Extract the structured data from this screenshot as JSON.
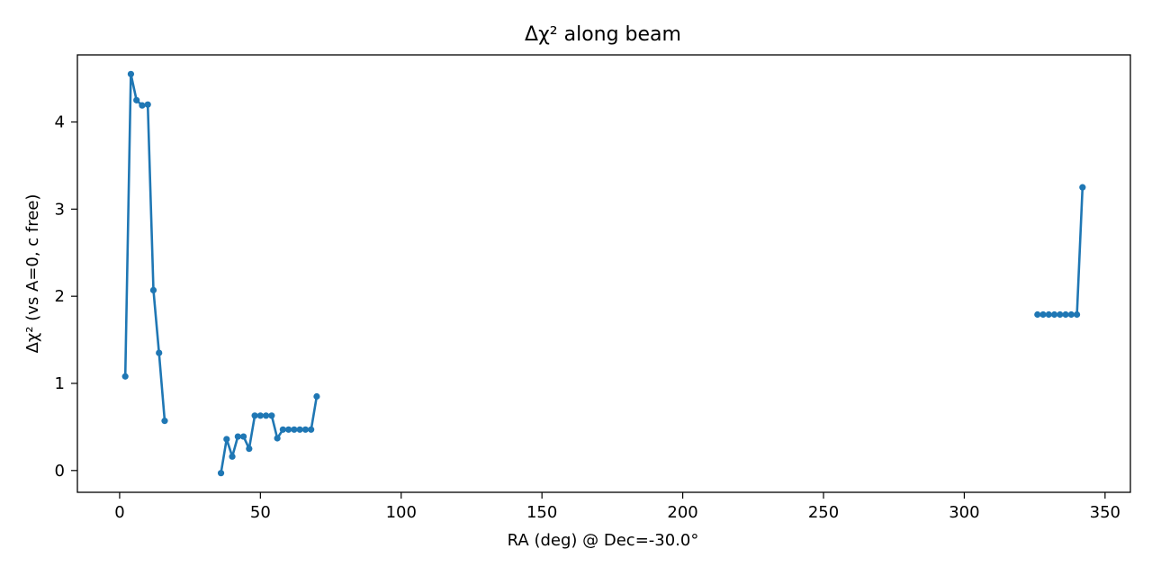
{
  "chart_data": {
    "type": "line",
    "title": "Δχ² along beam",
    "xlabel": "RA (deg) @ Dec=-30.0°",
    "ylabel": "Δχ² (vs A=0, c free)",
    "xlim": [
      -15,
      359
    ],
    "ylim": [
      -0.25,
      4.77
    ],
    "xticks": [
      0,
      50,
      100,
      150,
      200,
      250,
      300,
      350
    ],
    "yticks": [
      0,
      1,
      2,
      3,
      4
    ],
    "grid": false,
    "legend": "none",
    "color": "#1f77b4",
    "series": [
      {
        "x": [
          2,
          4,
          6,
          8,
          10,
          12,
          14,
          16
        ],
        "y": [
          1.08,
          4.55,
          4.25,
          4.19,
          4.2,
          2.07,
          1.35,
          0.57
        ]
      },
      {
        "x": [
          36,
          38,
          40,
          42,
          44,
          46,
          48,
          50,
          52,
          54,
          56,
          58,
          60,
          62,
          64,
          66,
          68,
          70
        ],
        "y": [
          -0.03,
          0.36,
          0.16,
          0.39,
          0.39,
          0.25,
          0.63,
          0.63,
          0.63,
          0.63,
          0.37,
          0.47,
          0.47,
          0.47,
          0.47,
          0.47,
          0.47,
          0.85
        ]
      },
      {
        "x": [
          326,
          328,
          330,
          332,
          334,
          336,
          338,
          340,
          342
        ],
        "y": [
          1.79,
          1.79,
          1.79,
          1.79,
          1.79,
          1.79,
          1.79,
          1.79,
          3.25
        ]
      }
    ]
  }
}
